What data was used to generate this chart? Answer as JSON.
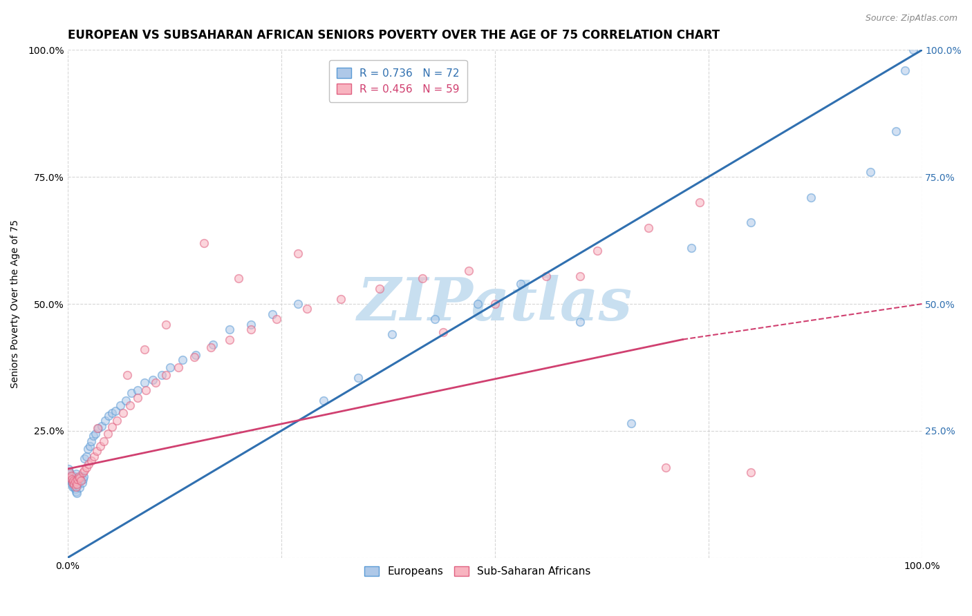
{
  "title": "EUROPEAN VS SUBSAHARAN AFRICAN SENIORS POVERTY OVER THE AGE OF 75 CORRELATION CHART",
  "source": "Source: ZipAtlas.com",
  "ylabel": "Seniors Poverty Over the Age of 75",
  "xlim": [
    0,
    1
  ],
  "ylim": [
    0,
    1
  ],
  "xticks": [
    0.0,
    0.25,
    0.5,
    0.75,
    1.0
  ],
  "yticks": [
    0.0,
    0.25,
    0.5,
    0.75,
    1.0
  ],
  "xticklabels": [
    "0.0%",
    "",
    "",
    "",
    "100.0%"
  ],
  "yticklabels": [
    "",
    "25.0%",
    "50.0%",
    "75.0%",
    "100.0%"
  ],
  "right_yticklabels": [
    "",
    "25.0%",
    "50.0%",
    "75.0%",
    "100.0%"
  ],
  "blue_R": 0.736,
  "blue_N": 72,
  "pink_R": 0.456,
  "pink_N": 59,
  "blue_fill_color": "#aec8e8",
  "pink_fill_color": "#f8b4c0",
  "blue_edge_color": "#5b9bd5",
  "pink_edge_color": "#e06080",
  "blue_line_color": "#3070b0",
  "pink_line_color": "#d04070",
  "watermark_color": "#c8dff0",
  "background_color": "#ffffff",
  "grid_color": "#cccccc",
  "title_fontsize": 12,
  "axis_label_fontsize": 10,
  "tick_fontsize": 10,
  "scatter_size": 70,
  "scatter_alpha": 0.55,
  "scatter_lw": 1.2,
  "blue_scatter_x": [
    0.001,
    0.002,
    0.002,
    0.003,
    0.003,
    0.004,
    0.004,
    0.005,
    0.005,
    0.006,
    0.006,
    0.007,
    0.007,
    0.008,
    0.008,
    0.009,
    0.009,
    0.01,
    0.01,
    0.011,
    0.011,
    0.012,
    0.013,
    0.014,
    0.015,
    0.016,
    0.017,
    0.018,
    0.019,
    0.02,
    0.022,
    0.024,
    0.026,
    0.028,
    0.03,
    0.033,
    0.036,
    0.04,
    0.044,
    0.048,
    0.052,
    0.056,
    0.062,
    0.068,
    0.075,
    0.082,
    0.09,
    0.1,
    0.11,
    0.12,
    0.135,
    0.15,
    0.17,
    0.19,
    0.215,
    0.24,
    0.27,
    0.3,
    0.34,
    0.38,
    0.43,
    0.48,
    0.53,
    0.6,
    0.66,
    0.73,
    0.8,
    0.87,
    0.94,
    0.97,
    0.98,
    0.99
  ],
  "blue_scatter_y": [
    0.175,
    0.17,
    0.165,
    0.16,
    0.155,
    0.15,
    0.16,
    0.145,
    0.155,
    0.14,
    0.155,
    0.148,
    0.162,
    0.14,
    0.158,
    0.135,
    0.152,
    0.13,
    0.165,
    0.128,
    0.145,
    0.142,
    0.148,
    0.138,
    0.155,
    0.162,
    0.148,
    0.155,
    0.16,
    0.195,
    0.2,
    0.215,
    0.22,
    0.23,
    0.24,
    0.245,
    0.255,
    0.26,
    0.27,
    0.28,
    0.285,
    0.29,
    0.3,
    0.31,
    0.325,
    0.33,
    0.345,
    0.35,
    0.36,
    0.375,
    0.39,
    0.4,
    0.42,
    0.45,
    0.46,
    0.48,
    0.5,
    0.31,
    0.355,
    0.44,
    0.47,
    0.5,
    0.54,
    0.465,
    0.265,
    0.61,
    0.66,
    0.71,
    0.76,
    0.84,
    0.96,
    1.0
  ],
  "pink_scatter_x": [
    0.002,
    0.003,
    0.004,
    0.005,
    0.006,
    0.007,
    0.008,
    0.009,
    0.01,
    0.011,
    0.012,
    0.013,
    0.014,
    0.016,
    0.018,
    0.02,
    0.022,
    0.025,
    0.028,
    0.031,
    0.034,
    0.038,
    0.042,
    0.047,
    0.052,
    0.058,
    0.065,
    0.073,
    0.082,
    0.092,
    0.103,
    0.115,
    0.13,
    0.148,
    0.168,
    0.19,
    0.215,
    0.245,
    0.28,
    0.32,
    0.365,
    0.415,
    0.47,
    0.035,
    0.16,
    0.2,
    0.27,
    0.44,
    0.5,
    0.56,
    0.62,
    0.68,
    0.74,
    0.07,
    0.09,
    0.115,
    0.6,
    0.7,
    0.8
  ],
  "pink_scatter_y": [
    0.168,
    0.158,
    0.162,
    0.155,
    0.148,
    0.152,
    0.145,
    0.15,
    0.14,
    0.145,
    0.155,
    0.16,
    0.158,
    0.152,
    0.168,
    0.172,
    0.178,
    0.185,
    0.192,
    0.2,
    0.21,
    0.22,
    0.23,
    0.245,
    0.258,
    0.27,
    0.285,
    0.3,
    0.315,
    0.33,
    0.345,
    0.36,
    0.375,
    0.395,
    0.415,
    0.43,
    0.45,
    0.47,
    0.49,
    0.51,
    0.53,
    0.55,
    0.565,
    0.255,
    0.62,
    0.55,
    0.6,
    0.445,
    0.5,
    0.555,
    0.605,
    0.65,
    0.7,
    0.36,
    0.41,
    0.46,
    0.555,
    0.178,
    0.168
  ]
}
